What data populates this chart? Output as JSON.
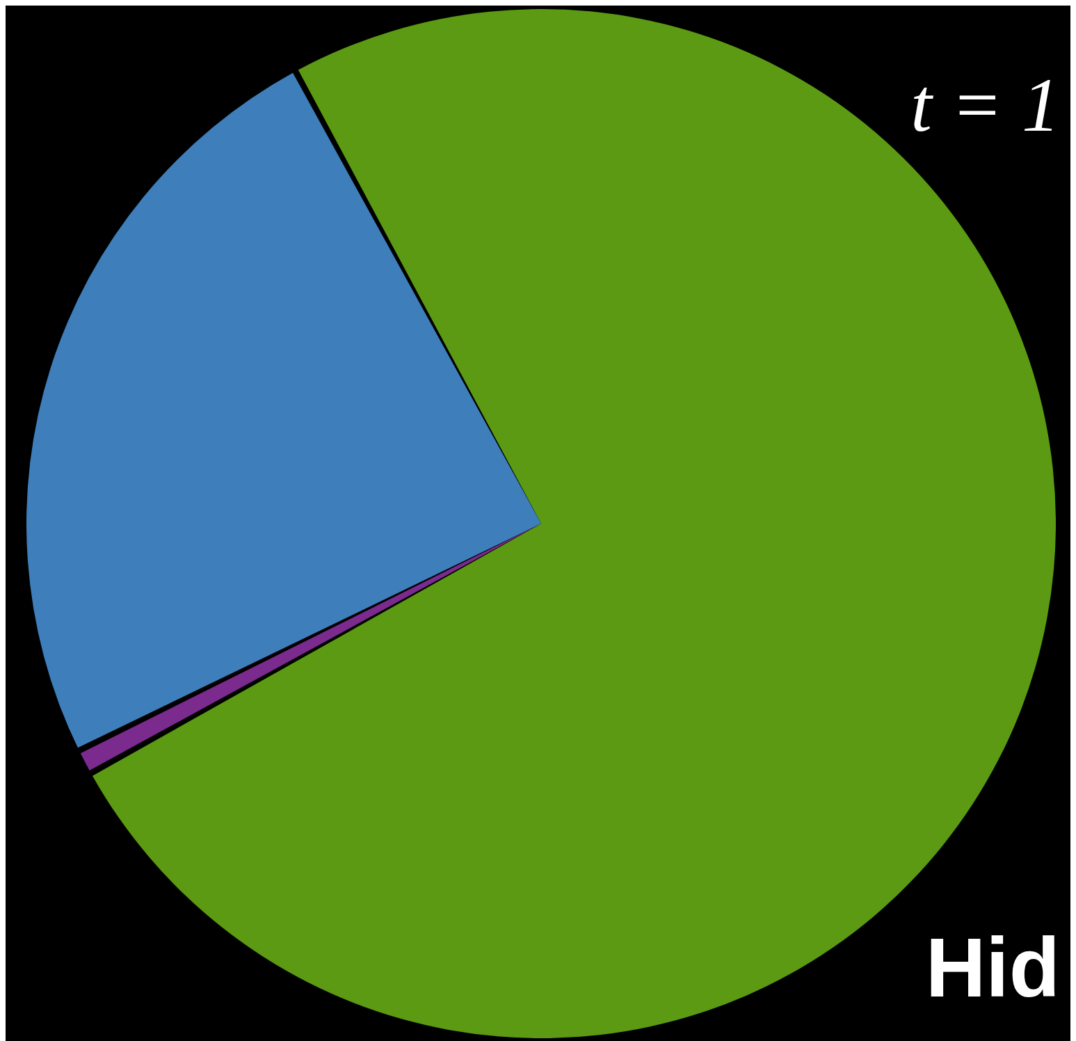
{
  "chart_data": {
    "type": "pie",
    "title": "t = 1",
    "categories": [
      "Hid",
      null,
      null
    ],
    "values": [
      75.1,
      0.6,
      24.3
    ],
    "colors": [
      "#5b9a12",
      "#7b2a8e",
      "#3d7ebb"
    ]
  }
}
